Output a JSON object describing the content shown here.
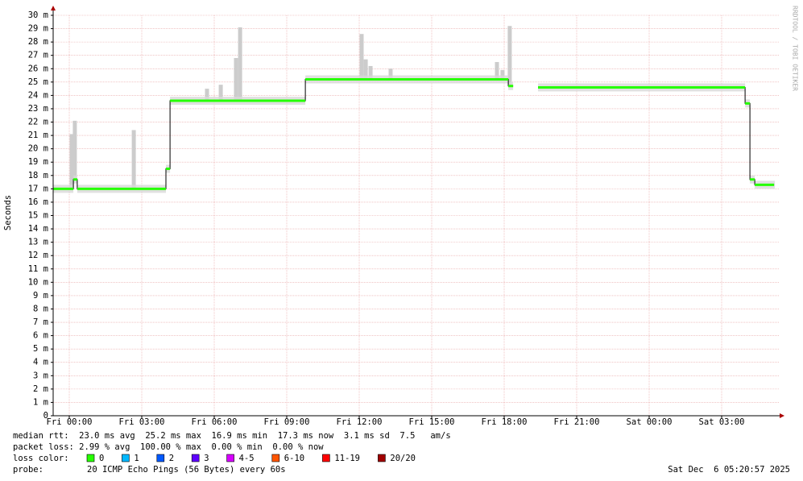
{
  "chart_data": {
    "type": "line",
    "y_label": "Seconds",
    "watermark": "RRDTOOL / TOBI OETIKER",
    "xlim": [
      -0.667,
      29.4
    ],
    "xticks": [
      {
        "value": 0,
        "label": "Fri 00:00"
      },
      {
        "value": 3,
        "label": "Fri 03:00"
      },
      {
        "value": 6,
        "label": "Fri 06:00"
      },
      {
        "value": 9,
        "label": "Fri 09:00"
      },
      {
        "value": 12,
        "label": "Fri 12:00"
      },
      {
        "value": 15,
        "label": "Fri 15:00"
      },
      {
        "value": 18,
        "label": "Fri 18:00"
      },
      {
        "value": 21,
        "label": "Fri 21:00"
      },
      {
        "value": 24,
        "label": "Sat 00:00"
      },
      {
        "value": 27,
        "label": "Sat 03:00"
      }
    ],
    "ylim": [
      0,
      0.03
    ],
    "yticks": [
      0,
      {
        "value": 0.001,
        "label": "1 m"
      },
      {
        "value": 0.002,
        "label": "2 m"
      },
      {
        "value": 0.003,
        "label": "3 m"
      },
      {
        "value": 0.004,
        "label": "4 m"
      },
      {
        "value": 0.005,
        "label": "5 m"
      },
      {
        "value": 0.006,
        "label": "6 m"
      },
      {
        "value": 0.007,
        "label": "7 m"
      },
      {
        "value": 0.008,
        "label": "8 m"
      },
      {
        "value": 0.009,
        "label": "9 m"
      },
      {
        "value": 0.01,
        "label": "10 m"
      },
      {
        "value": 0.011,
        "label": "11 m"
      },
      {
        "value": 0.012,
        "label": "12 m"
      },
      {
        "value": 0.013,
        "label": "13 m"
      },
      {
        "value": 0.014,
        "label": "14 m"
      },
      {
        "value": 0.015,
        "label": "15 m"
      },
      {
        "value": 0.016,
        "label": "16 m"
      },
      {
        "value": 0.017,
        "label": "17 m"
      },
      {
        "value": 0.018,
        "label": "18 m"
      },
      {
        "value": 0.019,
        "label": "19 m"
      },
      {
        "value": 0.02,
        "label": "20 m"
      },
      {
        "value": 0.021,
        "label": "21 m"
      },
      {
        "value": 0.022,
        "label": "22 m"
      },
      {
        "value": 0.023,
        "label": "23 m"
      },
      {
        "value": 0.024,
        "label": "24 m"
      },
      {
        "value": 0.025,
        "label": "25 m"
      },
      {
        "value": 0.026,
        "label": "26 m"
      },
      {
        "value": 0.027,
        "label": "27 m"
      },
      {
        "value": 0.028,
        "label": "28 m"
      },
      {
        "value": 0.029,
        "label": "29 m"
      },
      {
        "value": 0.03,
        "label": "30 m"
      }
    ],
    "grid": true,
    "x": [
      -0.667,
      0.17,
      0.33,
      4.0,
      4.17,
      9.77,
      18.17,
      18.37,
      19.4,
      27.97,
      28.17,
      28.37,
      29.17
    ],
    "series": [
      {
        "color": "#26ff00",
        "values": [
          0.017,
          0.0177,
          0.017,
          0.0185,
          0.0236,
          0.0252,
          0.0247,
          null,
          0.0246,
          0.0234,
          0.0177,
          0.0173,
          0.0173
        ]
      }
    ],
    "smoke": {
      "color": "#cccccc",
      "x": [
        0.1,
        0.23,
        2.67,
        5.7,
        6.27,
        6.9,
        7.07,
        12.1,
        12.27,
        12.47,
        13.3,
        17.7,
        17.93,
        18.23
      ],
      "values": [
        0.0211,
        0.0221,
        0.0214,
        0.0245,
        0.0248,
        0.0268,
        0.0291,
        0.0286,
        0.0267,
        0.0262,
        0.026,
        0.0265,
        0.0259,
        0.0292
      ]
    },
    "stats": [
      "median rtt:  23.0 ms avg  25.2 ms max  16.9 ms min  17.3 ms now  3.1 ms sd  7.5   am/s",
      "packet loss: 2.99 % avg  100.00 % max  0.00 % min  0.00 % now"
    ],
    "loss_legend": {
      "label": "loss color:",
      "items": [
        {
          "name": "0",
          "color": "#26ff00"
        },
        {
          "name": "1",
          "color": "#00b8ff"
        },
        {
          "name": "2",
          "color": "#0059ff"
        },
        {
          "name": "3",
          "color": "#5e00ff"
        },
        {
          "name": "4-5",
          "color": "#d600ff"
        },
        {
          "name": "6-10",
          "color": "#ff5500"
        },
        {
          "name": "11-19",
          "color": "#ff0000"
        },
        {
          "name": "20/20",
          "color": "#a10000"
        }
      ]
    },
    "probe_label": "probe:",
    "probe": "20 ICMP Echo Pings (56 Bytes) every 60s",
    "timestamp": "Sat Dec  6 05:20:57 2025"
  }
}
